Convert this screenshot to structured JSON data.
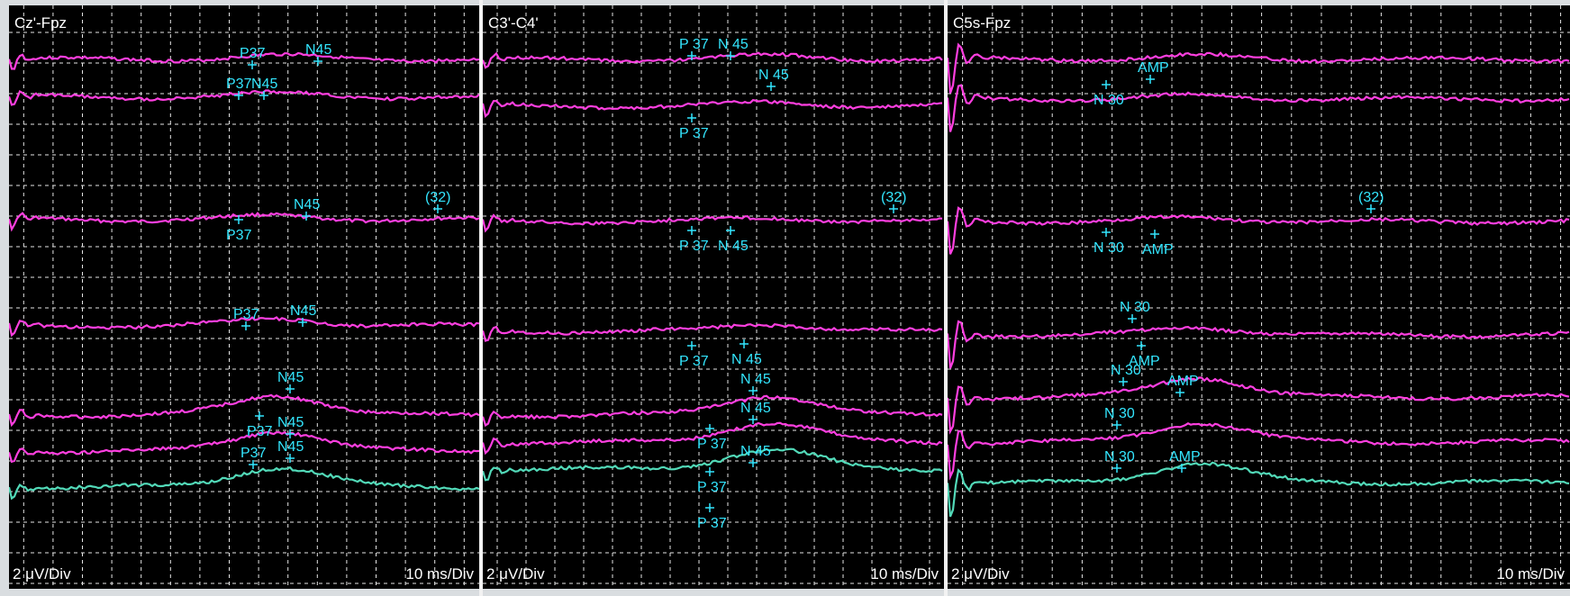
{
  "panels": [
    {
      "title": "Cz'-Fpz",
      "voltage_scale": "2 μV/Div",
      "time_scale": "10 ms/Div",
      "markers": [
        "P37",
        "N45",
        "P37",
        "N45",
        "P37",
        "N45",
        "(32)",
        "P37",
        "N45",
        "N45",
        "P37",
        "N45",
        "P37",
        "N45"
      ]
    },
    {
      "title": "C3'-C4'",
      "voltage_scale": "2 μV/Div",
      "time_scale": "10 ms/Div",
      "markers": [
        "P 37",
        "N 45",
        "N 45",
        "P 37",
        "(32)",
        "P 37",
        "N 45",
        "P 37",
        "N 45",
        "N 45",
        "P 37",
        "N 45",
        "P 37",
        "N 45",
        "P 37"
      ]
    },
    {
      "title": "C5s-Fpz",
      "voltage_scale": "2 μV/Div",
      "time_scale": "10 ms/Div",
      "markers": [
        "N 30",
        "AMP",
        "(32)",
        "N 30",
        "AMP",
        "N 30",
        "AMP",
        "N 30",
        "AMP",
        "N 30",
        "N 30",
        "AMP"
      ]
    }
  ],
  "colors": {
    "background": "#000000",
    "grid": "#e6e6e6",
    "trace": "#ff3fe0",
    "trace_average": "#52d9b8",
    "marker": "#33e6ff",
    "text": "#ffffff"
  }
}
